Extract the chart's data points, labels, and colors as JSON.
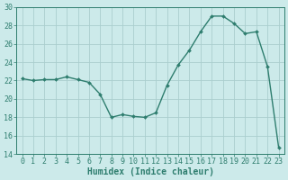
{
  "x": [
    0,
    1,
    2,
    3,
    4,
    5,
    6,
    7,
    8,
    9,
    10,
    11,
    12,
    13,
    14,
    15,
    16,
    17,
    18,
    19,
    20,
    21,
    22,
    23
  ],
  "y": [
    22.2,
    22.0,
    22.1,
    22.1,
    22.4,
    22.1,
    21.8,
    20.5,
    18.0,
    18.3,
    18.1,
    18.0,
    18.5,
    21.5,
    23.7,
    25.3,
    27.3,
    29.0,
    29.0,
    28.2,
    27.1,
    27.3,
    23.5,
    14.7
  ],
  "line_color": "#2e7d6e",
  "marker_color": "#2e7d6e",
  "bg_color": "#cceaea",
  "grid_color": "#aacece",
  "xlabel": "Humidex (Indice chaleur)",
  "ylim": [
    14,
    30
  ],
  "xlim": [
    -0.5,
    23.5
  ],
  "yticks": [
    14,
    16,
    18,
    20,
    22,
    24,
    26,
    28,
    30
  ],
  "xticks": [
    0,
    1,
    2,
    3,
    4,
    5,
    6,
    7,
    8,
    9,
    10,
    11,
    12,
    13,
    14,
    15,
    16,
    17,
    18,
    19,
    20,
    21,
    22,
    23
  ],
  "font_color": "#2e7d6e",
  "tick_fontsize": 6,
  "xlabel_fontsize": 7
}
